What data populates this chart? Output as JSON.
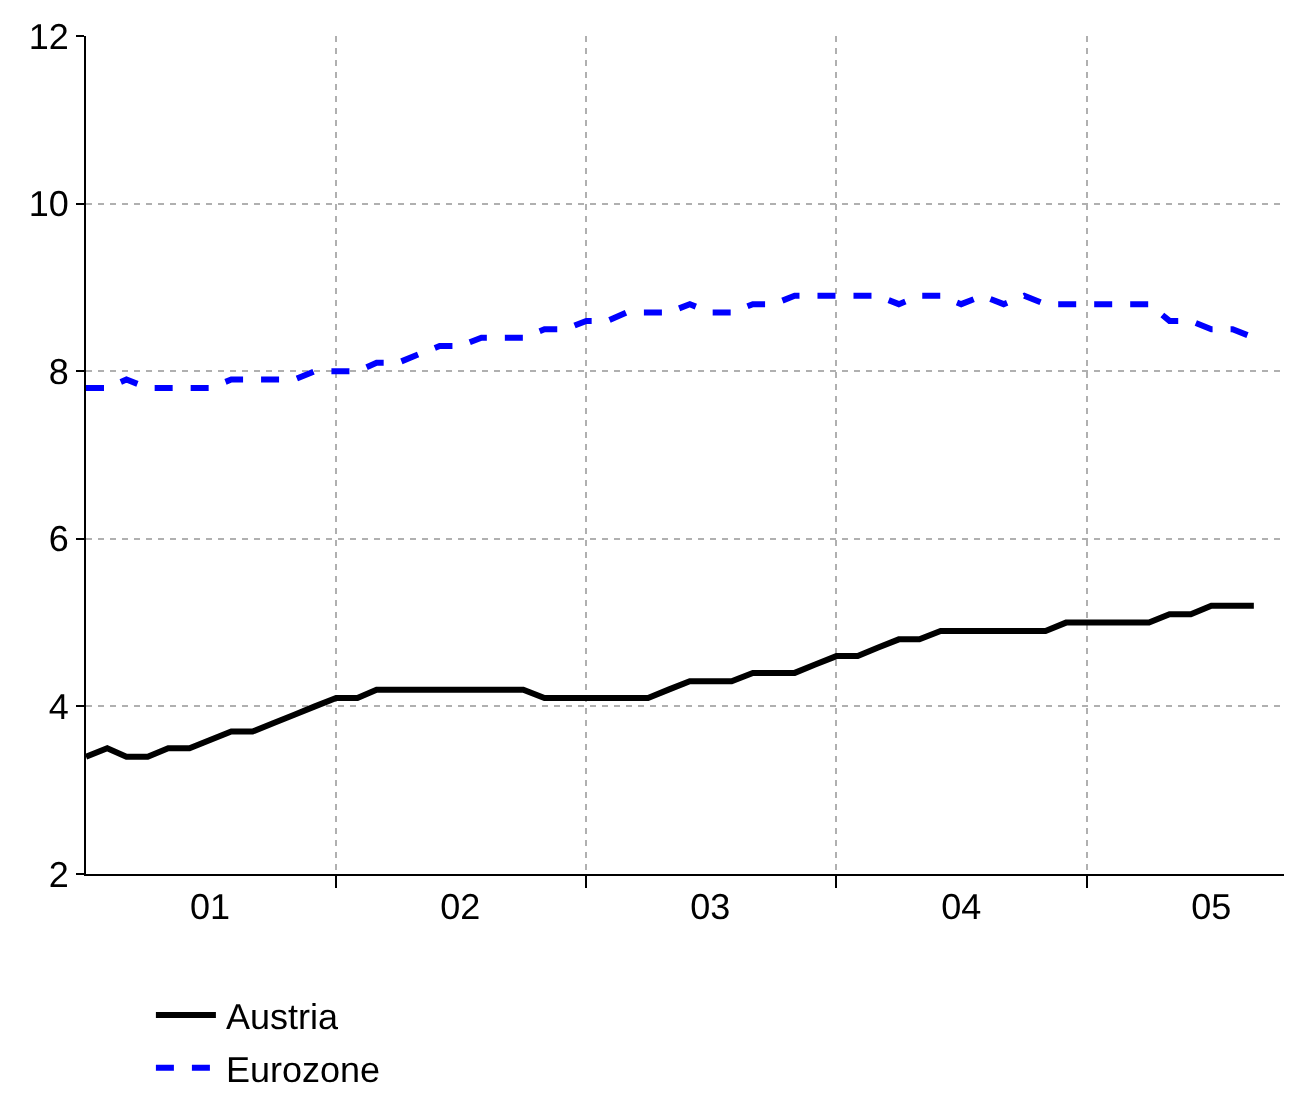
{
  "chart_data": {
    "type": "line",
    "x": [
      "2001-01",
      "2001-02",
      "2001-03",
      "2001-04",
      "2001-05",
      "2001-06",
      "2001-07",
      "2001-08",
      "2001-09",
      "2001-10",
      "2001-11",
      "2001-12",
      "2002-01",
      "2002-02",
      "2002-03",
      "2002-04",
      "2002-05",
      "2002-06",
      "2002-07",
      "2002-08",
      "2002-09",
      "2002-10",
      "2002-11",
      "2002-12",
      "2003-01",
      "2003-02",
      "2003-03",
      "2003-04",
      "2003-05",
      "2003-06",
      "2003-07",
      "2003-08",
      "2003-09",
      "2003-10",
      "2003-11",
      "2003-12",
      "2004-01",
      "2004-02",
      "2004-03",
      "2004-04",
      "2004-05",
      "2004-06",
      "2004-07",
      "2004-08",
      "2004-09",
      "2004-10",
      "2004-11",
      "2004-12",
      "2005-01",
      "2005-02",
      "2005-03",
      "2005-04",
      "2005-05",
      "2005-06",
      "2005-07",
      "2005-08",
      "2005-09"
    ],
    "series": [
      {
        "name": "Austria",
        "color": "#000000",
        "line_style": "solid",
        "values": [
          3.4,
          3.5,
          3.4,
          3.4,
          3.5,
          3.5,
          3.6,
          3.7,
          3.7,
          3.8,
          3.9,
          4.0,
          4.1,
          4.1,
          4.2,
          4.2,
          4.2,
          4.2,
          4.2,
          4.2,
          4.2,
          4.2,
          4.1,
          4.1,
          4.1,
          4.1,
          4.1,
          4.1,
          4.2,
          4.3,
          4.3,
          4.3,
          4.4,
          4.4,
          4.4,
          4.5,
          4.6,
          4.6,
          4.7,
          4.8,
          4.8,
          4.9,
          4.9,
          4.9,
          4.9,
          4.9,
          4.9,
          5.0,
          5.0,
          5.0,
          5.0,
          5.0,
          5.1,
          5.1,
          5.2,
          5.2,
          5.2
        ]
      },
      {
        "name": "Eurozone",
        "color": "#0000ff",
        "line_style": "dashed",
        "values": [
          7.8,
          7.8,
          7.9,
          7.8,
          7.8,
          7.8,
          7.8,
          7.9,
          7.9,
          7.9,
          7.9,
          8.0,
          8.0,
          8.0,
          8.1,
          8.1,
          8.2,
          8.3,
          8.3,
          8.4,
          8.4,
          8.4,
          8.5,
          8.5,
          8.6,
          8.6,
          8.7,
          8.7,
          8.7,
          8.8,
          8.7,
          8.7,
          8.8,
          8.8,
          8.9,
          8.9,
          8.9,
          8.9,
          8.9,
          8.8,
          8.9,
          8.9,
          8.8,
          8.9,
          8.8,
          8.9,
          8.8,
          8.8,
          8.8,
          8.8,
          8.8,
          8.8,
          8.6,
          8.6,
          8.5,
          8.5,
          8.4
        ]
      }
    ],
    "xlim": [
      "2001-01-01",
      "2005-10-15"
    ],
    "xticks": [
      {
        "value": "2001-07-01",
        "label": "01"
      },
      {
        "value": "2002-01-01",
        "label": null
      },
      {
        "value": "2002-07-01",
        "label": "02"
      },
      {
        "value": "2003-01-01",
        "label": null
      },
      {
        "value": "2003-07-01",
        "label": "03"
      },
      {
        "value": "2004-01-01",
        "label": null
      },
      {
        "value": "2004-07-01",
        "label": "04"
      },
      {
        "value": "2005-01-01",
        "label": null
      },
      {
        "value": "2005-07-01",
        "label": "05"
      }
    ],
    "ylim": [
      2,
      12
    ],
    "yticks": [
      2,
      4,
      6,
      8,
      10,
      12
    ],
    "grid": true,
    "legend": "bottom",
    "marker": "none"
  }
}
